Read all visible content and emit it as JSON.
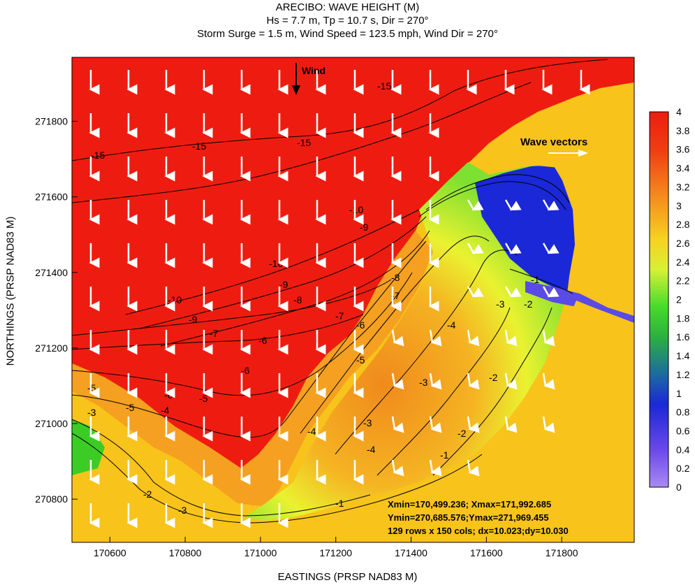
{
  "chart_data": {
    "type": "heatmap",
    "title": "ARECIBO: WAVE HEIGHT (M)",
    "subtitle_lines": [
      "Hs = 7.7 m, Tp = 10.7 s, Dir = 270°",
      "Storm Surge = 1.5 m, Wind Speed = 123.5 mph, Wind Dir = 270°"
    ],
    "xlabel": "EASTINGS (PRSP NAD83 M)",
    "ylabel": "NORTHINGS (PRSP NAD83 M)",
    "x_ticks": [
      170600,
      170800,
      171000,
      171200,
      171400,
      171600,
      171800
    ],
    "y_ticks": [
      270800,
      271000,
      271200,
      271400,
      271600,
      271800
    ],
    "xlim": [
      170499.236,
      171992.685
    ],
    "ylim": [
      270685.576,
      271969.455
    ],
    "colorbar": {
      "min": 0,
      "max": 4,
      "ticks": [
        "0",
        "0.2",
        "0.4",
        "0.6",
        "0.8",
        "1",
        "1.2",
        "1.4",
        "1.6",
        "1.8",
        "2",
        "2.2",
        "2.4",
        "2.6",
        "2.8",
        "3",
        "3.2",
        "3.4",
        "3.6",
        "3.8",
        "4"
      ]
    },
    "contour_labels": [
      "-15",
      "-10",
      "-9",
      "-8",
      "-7",
      "-6",
      "-5",
      "-4",
      "-3",
      "-2",
      "-1"
    ],
    "annotations": {
      "wind": "Wind",
      "wave_vectors": "Wave vectors"
    },
    "grid_info": [
      "Xmin=170,499.236; Xmax=171,992.685",
      "Ymin=270,685.576;Ymax=271,969.455",
      "129 rows x 150 cols; dx=10.023;dy=10.030"
    ]
  },
  "colors": {
    "land": "#f8c31a",
    "high": "#ee1c10",
    "orange": "#f5a020",
    "yellow": "#eaf230",
    "green": "#3ccc25",
    "blue": "#1a28d8",
    "violet": "#a07af0",
    "arrow": "#ffffff",
    "contour": "#000000"
  }
}
